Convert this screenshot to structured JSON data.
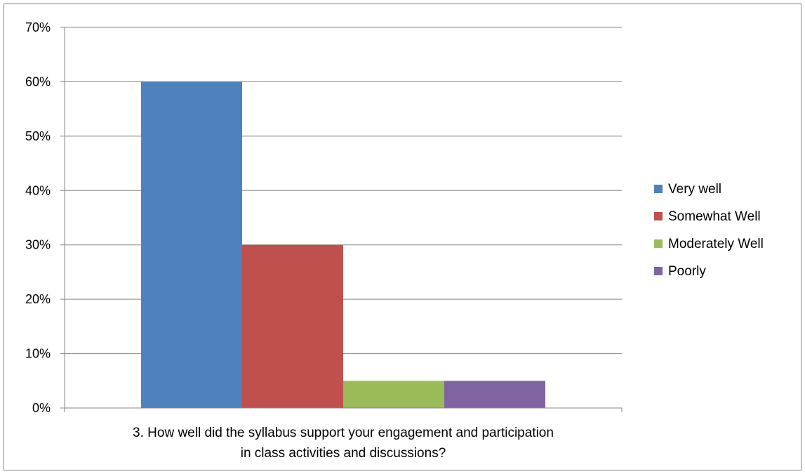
{
  "chart_data": {
    "type": "bar",
    "title": "",
    "xlabel": "",
    "ylabel": "",
    "categories": [
      "3. How well did the syllabus support your engagement and participation in class activities and discussions?"
    ],
    "category_label_lines": [
      "3. How well did the syllabus support your engagement and participation",
      "in class activities and discussions?"
    ],
    "series": [
      {
        "name": "Very well",
        "values": [
          0.6
        ],
        "color": "#4F81BD"
      },
      {
        "name": "Somewhat Well",
        "values": [
          0.3
        ],
        "color": "#C0504D"
      },
      {
        "name": "Moderately Well",
        "values": [
          0.05
        ],
        "color": "#9BBB59"
      },
      {
        "name": "Poorly",
        "values": [
          0.05
        ],
        "color": "#8064A2"
      }
    ],
    "ylim": [
      0,
      0.7
    ],
    "yticks": [
      0,
      0.1,
      0.2,
      0.3,
      0.4,
      0.5,
      0.6,
      0.7
    ],
    "ytick_labels": [
      "0%",
      "10%",
      "20%",
      "30%",
      "40%",
      "50%",
      "60%",
      "70%"
    ],
    "grid": true,
    "legend_position": "right",
    "colors": {
      "grid": "#868686",
      "axis": "#868686",
      "border": "#868686"
    }
  }
}
